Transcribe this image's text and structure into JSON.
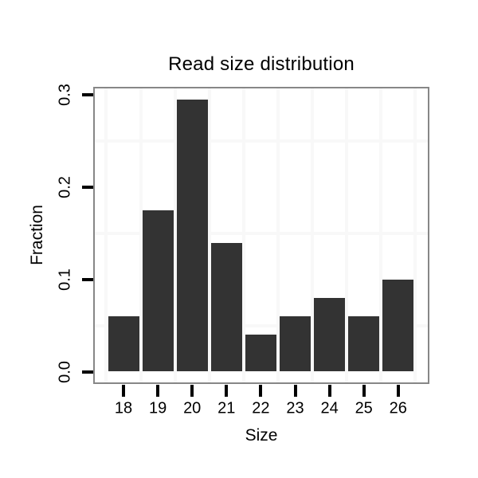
{
  "chart_data": {
    "type": "bar",
    "title": "Read size distribution",
    "xlabel": "Size",
    "ylabel": "Fraction",
    "categories": [
      "18",
      "19",
      "20",
      "21",
      "22",
      "23",
      "24",
      "25",
      "26"
    ],
    "values": [
      0.06,
      0.175,
      0.295,
      0.14,
      0.04,
      0.06,
      0.08,
      0.06,
      0.1
    ],
    "ytick_labels": [
      "0.0",
      "0.1",
      "0.2",
      "0.3"
    ],
    "ytick_values": [
      0.0,
      0.1,
      0.2,
      0.3
    ],
    "ylim": [
      -0.015,
      0.309
    ],
    "grid": {
      "horizontal_lines_at": [
        0.05,
        0.15,
        0.25
      ],
      "vertical_lines_between_categories": true
    },
    "legend": "none",
    "colors": {
      "bar": "#333333",
      "panel_border": "#878787",
      "grid": "#f8f8f8",
      "tick": "#000000",
      "text": "#000000"
    }
  }
}
